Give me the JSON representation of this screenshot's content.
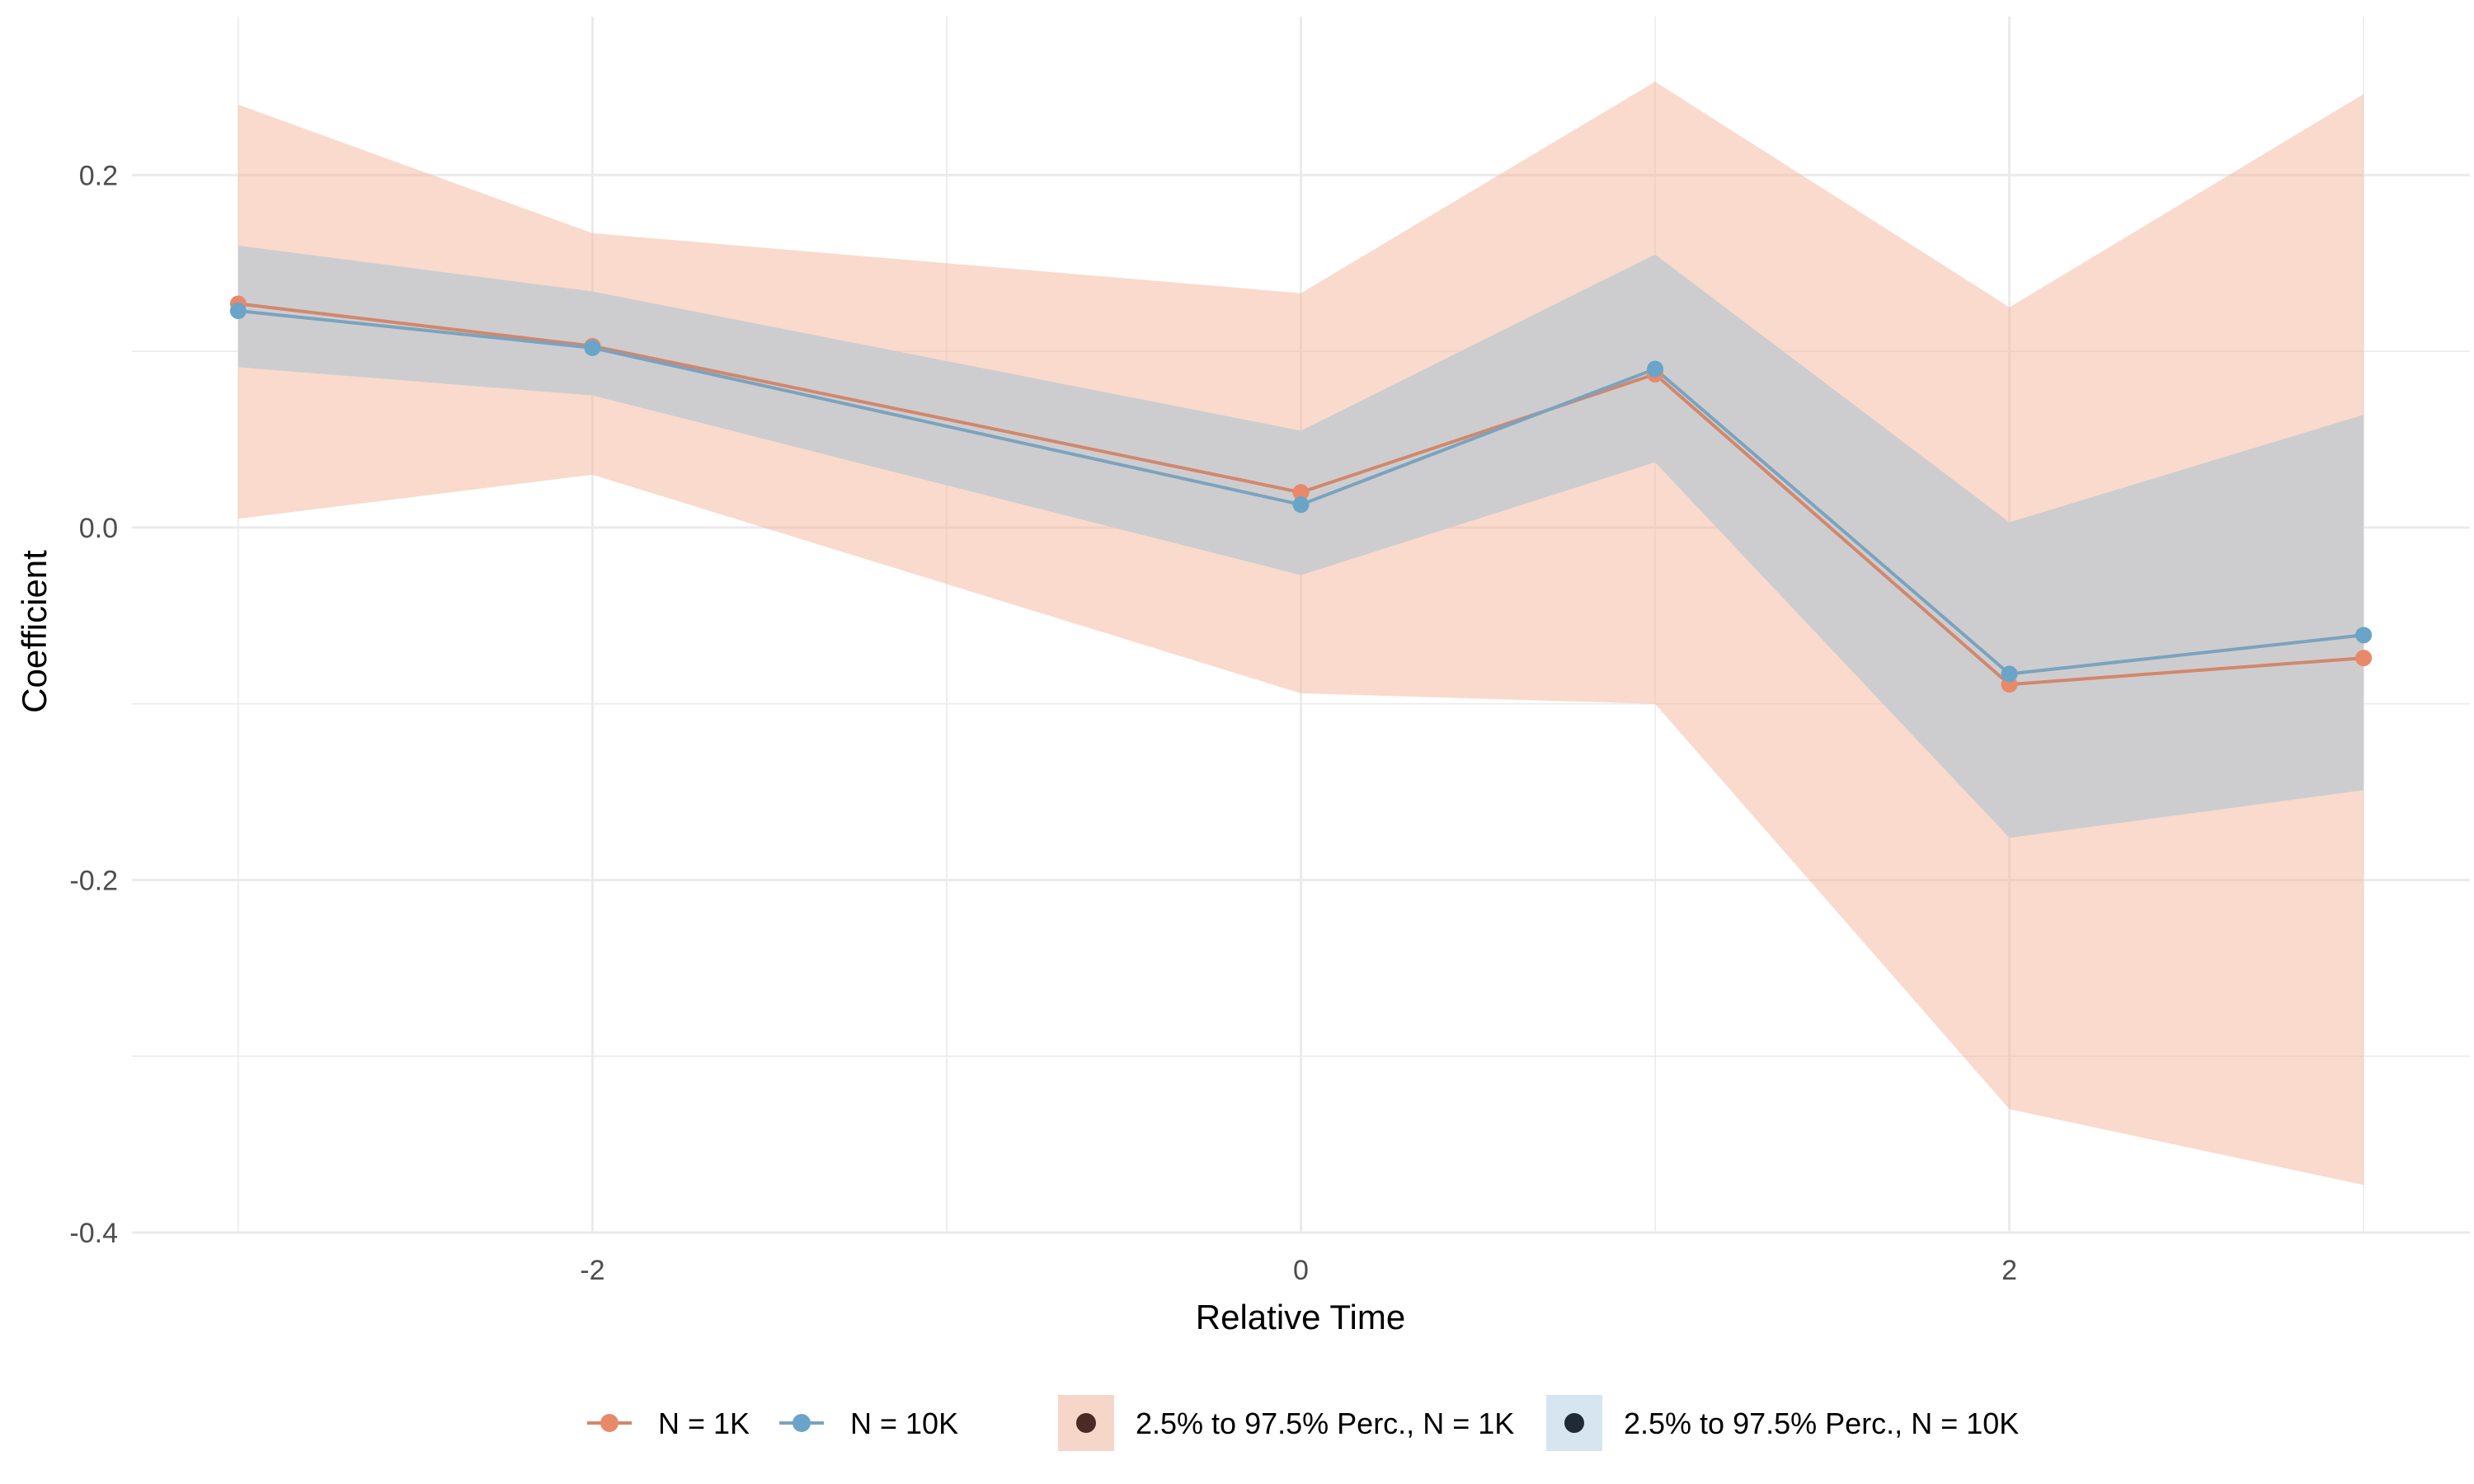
{
  "chart_data": {
    "type": "line",
    "xlabel": "Relative Time",
    "ylabel": "Coefficient",
    "x": [
      -3,
      -2,
      0,
      1,
      2,
      3
    ],
    "xlim": [
      -3.3,
      3.3
    ],
    "ylim": [
      -0.4,
      0.29
    ],
    "x_ticks": [
      -2,
      0,
      2
    ],
    "y_ticks": [
      -0.4,
      -0.2,
      0.0,
      0.2
    ],
    "x_tick_labels": [
      "-2",
      "0",
      "2"
    ],
    "y_tick_labels": [
      "-0.4",
      "-0.2",
      "0.0",
      "0.2"
    ],
    "grid": true,
    "legend_position": "bottom",
    "series": [
      {
        "name": "N = 1K",
        "values": [
          0.127,
          0.103,
          0.02,
          0.087,
          -0.089,
          -0.074
        ],
        "color": "#e8896a"
      },
      {
        "name": "N = 10K",
        "values": [
          0.123,
          0.102,
          0.013,
          0.09,
          -0.083,
          -0.061
        ],
        "color": "#6aa4c8"
      }
    ],
    "bands": [
      {
        "name": "2.5% to 97.5% Perc., N = 1K",
        "lower": [
          0.005,
          0.03,
          -0.094,
          -0.1,
          -0.33,
          -0.373
        ],
        "upper": [
          0.24,
          0.167,
          0.133,
          0.253,
          0.125,
          0.246
        ],
        "color": "#f4b8a0"
      },
      {
        "name": "2.5% to 97.5% Perc., N = 10K",
        "lower": [
          0.091,
          0.075,
          -0.027,
          0.037,
          -0.176,
          -0.149
        ],
        "upper": [
          0.16,
          0.134,
          0.055,
          0.155,
          0.003,
          0.064
        ],
        "color": "#b9d4e6"
      }
    ],
    "colors": {
      "band_overlap": "#cdcdcf",
      "band_1k_key": "#f7d6ca",
      "band_10k_key": "#d6e5ef",
      "dot_1k_key": "#4a2a22",
      "dot_10k_key": "#1e2a36",
      "grid": "#ebebeb",
      "line_1k": "#d2876c",
      "line_10k": "#7aa3bf"
    }
  }
}
